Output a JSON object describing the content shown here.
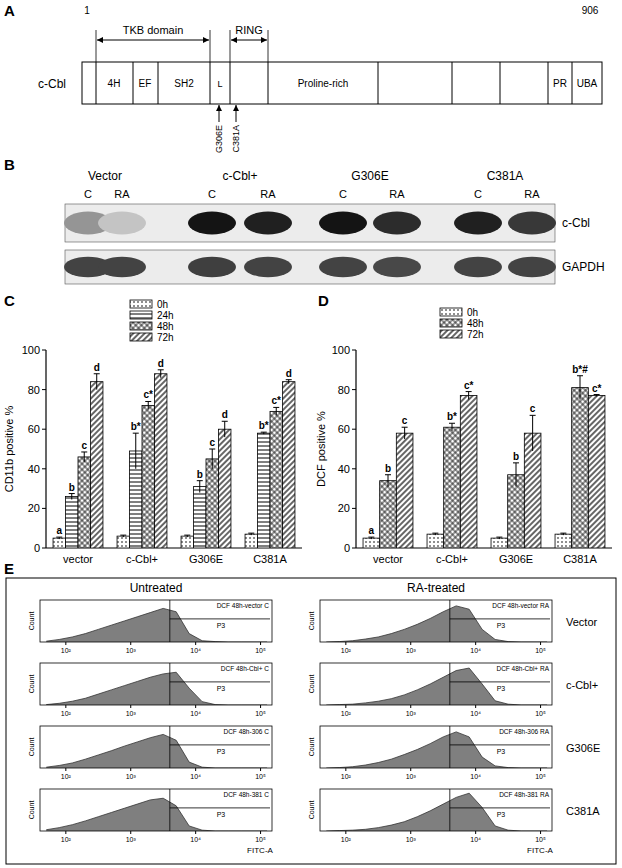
{
  "panel_labels": [
    "A",
    "B",
    "C",
    "D",
    "E"
  ],
  "diagram": {
    "protein": "c-Cbl",
    "start": 1,
    "end": 906,
    "regions": [
      {
        "label": "TKB domain"
      },
      {
        "label": "RING"
      }
    ],
    "domains": [
      "4H",
      "EF",
      "SH2",
      "L",
      "Proline-rich",
      "PR",
      "UBA"
    ],
    "mutations": [
      "G306E",
      "C381A"
    ]
  },
  "blot": {
    "groups": [
      "Vector",
      "c-Cbl+",
      "G306E",
      "C381A"
    ],
    "lanes": [
      "C",
      "RA",
      "C",
      "RA",
      "C",
      "RA",
      "C",
      "RA"
    ],
    "rows": [
      {
        "label": "c-Cbl",
        "intensity": [
          0.45,
          0.25,
          1,
          0.95,
          1,
          0.9,
          0.95,
          0.85
        ]
      },
      {
        "label": "GAPDH",
        "intensity": [
          0.8,
          0.8,
          0.82,
          0.8,
          0.8,
          0.78,
          0.8,
          0.8
        ]
      }
    ]
  },
  "flow": {
    "headers": [
      "Untreated",
      "RA-treated"
    ],
    "rows": [
      "Vector",
      "c-Cbl+",
      "G306E",
      "C381A"
    ]
  },
  "chart_data": [
    {
      "type": "bar",
      "ylabel": "CD11b positive %",
      "categories": [
        "vector",
        "c-Cbl+",
        "G306E",
        "C381A"
      ],
      "ylim": [
        0,
        100
      ],
      "yticks": [
        0,
        20,
        40,
        60,
        80,
        100
      ],
      "legend": "top",
      "series": [
        {
          "name": "0h",
          "color": "#000000",
          "marker": "dots",
          "values": [
            5,
            6,
            6,
            7
          ],
          "errors": [
            0.5,
            0.5,
            0.5,
            0.5
          ],
          "annotations": [
            "a",
            null,
            null,
            null
          ]
        },
        {
          "name": "24h",
          "color": "#000000",
          "marker": "horizontal",
          "values": [
            26,
            49,
            31,
            58
          ],
          "errors": [
            1.5,
            9,
            3,
            0.5
          ],
          "annotations": [
            "b",
            "b*",
            "b",
            "b*"
          ]
        },
        {
          "name": "48h",
          "color": "#000000",
          "marker": "crosshatch",
          "values": [
            46,
            72,
            45,
            69
          ],
          "errors": [
            2.5,
            2,
            5,
            2
          ],
          "annotations": [
            "c",
            "c*",
            "c",
            "c*"
          ]
        },
        {
          "name": "72h",
          "color": "#000000",
          "marker": "diagonal",
          "values": [
            84,
            88,
            60,
            84
          ],
          "errors": [
            4,
            2,
            4,
            1
          ],
          "annotations": [
            "d",
            "d",
            "d",
            "d"
          ]
        }
      ]
    },
    {
      "type": "bar",
      "ylabel": "DCF positive %",
      "categories": [
        "vector",
        "c-Cbl+",
        "G306E",
        "C381A"
      ],
      "ylim": [
        0,
        100
      ],
      "yticks": [
        0,
        20,
        40,
        60,
        80,
        100
      ],
      "legend": "top",
      "series": [
        {
          "name": "0h",
          "color": "#000000",
          "marker": "dots",
          "values": [
            5,
            7,
            5,
            7
          ],
          "errors": [
            0.5,
            0.5,
            0.5,
            0.5
          ],
          "annotations": [
            "a",
            null,
            null,
            null
          ]
        },
        {
          "name": "48h",
          "color": "#000000",
          "marker": "crosshatch",
          "values": [
            34,
            61,
            37,
            81
          ],
          "errors": [
            3,
            2,
            6,
            6
          ],
          "annotations": [
            "b",
            "b*",
            "b",
            "b*#"
          ]
        },
        {
          "name": "72h",
          "color": "#000000",
          "marker": "diagonal",
          "values": [
            58,
            77,
            58,
            77
          ],
          "errors": [
            3,
            2,
            9,
            0.5
          ],
          "annotations": [
            "c",
            "c*",
            "c",
            "c*"
          ]
        }
      ]
    },
    {
      "type": "area",
      "title": "DCF 48h-vector C",
      "ylabel": "Count",
      "log": "x",
      "tick_labels": "x",
      "color": "#7f7f7f",
      "xlim": [
        40,
        150000
      ],
      "ylim": [
        0,
        100
      ],
      "xticks": [
        {
          "value": 100,
          "label": "10²"
        },
        {
          "value": 1000,
          "label": "10³"
        },
        {
          "value": 10000,
          "label": "10⁴"
        },
        {
          "value": 100000,
          "label": "10⁵"
        }
      ],
      "annotations": [
        {
          "text": "P3",
          "x": 4000
        }
      ],
      "x": [
        50,
        79,
        126,
        200,
        316,
        501,
        794,
        1259,
        1995,
        3162,
        5012,
        7943,
        12589,
        19953,
        31623,
        50119,
        79433,
        125893
      ],
      "values": [
        2,
        6,
        12,
        20,
        30,
        40,
        50,
        60,
        70,
        80,
        72,
        20,
        3,
        1,
        0,
        0,
        0,
        0
      ]
    },
    {
      "type": "area",
      "title": "DCF 48h-vector RA",
      "ylabel": "Count",
      "log": "x",
      "tick_labels": "x",
      "color": "#7f7f7f",
      "xlim": [
        40,
        150000
      ],
      "ylim": [
        0,
        100
      ],
      "xticks": [
        {
          "value": 100,
          "label": "10²"
        },
        {
          "value": 1000,
          "label": "10³"
        },
        {
          "value": 10000,
          "label": "10⁴"
        },
        {
          "value": 100000,
          "label": "10⁵"
        }
      ],
      "annotations": [
        {
          "text": "P3",
          "x": 4000
        }
      ],
      "x": [
        50,
        79,
        126,
        200,
        316,
        501,
        794,
        1259,
        1995,
        3162,
        5012,
        7943,
        12589,
        19953,
        31623,
        50119,
        79433,
        125893
      ],
      "values": [
        0,
        1,
        3,
        7,
        12,
        20,
        30,
        42,
        56,
        72,
        86,
        78,
        30,
        6,
        1,
        0,
        0,
        0
      ]
    },
    {
      "type": "area",
      "title": "DCF 48h-Cbl+ C",
      "ylabel": "Count",
      "log": "x",
      "tick_labels": "x",
      "color": "#7f7f7f",
      "xlim": [
        40,
        150000
      ],
      "ylim": [
        0,
        100
      ],
      "xticks": [
        {
          "value": 100,
          "label": "10²"
        },
        {
          "value": 1000,
          "label": "10³"
        },
        {
          "value": 10000,
          "label": "10⁴"
        },
        {
          "value": 100000,
          "label": "10⁵"
        }
      ],
      "annotations": [
        {
          "text": "P3",
          "x": 4000
        }
      ],
      "x": [
        50,
        79,
        126,
        200,
        316,
        501,
        794,
        1259,
        1995,
        3162,
        5012,
        7943,
        12589,
        19953,
        31623,
        50119,
        79433,
        125893
      ],
      "values": [
        1,
        4,
        9,
        16,
        26,
        36,
        46,
        56,
        66,
        74,
        78,
        40,
        8,
        1,
        0,
        0,
        0,
        0
      ]
    },
    {
      "type": "area",
      "title": "DCF 48h-Cbl+ RA",
      "ylabel": "Count",
      "log": "x",
      "tick_labels": "x",
      "color": "#7f7f7f",
      "xlim": [
        40,
        150000
      ],
      "ylim": [
        0,
        100
      ],
      "xticks": [
        {
          "value": 100,
          "label": "10²"
        },
        {
          "value": 1000,
          "label": "10³"
        },
        {
          "value": 10000,
          "label": "10⁴"
        },
        {
          "value": 100000,
          "label": "10⁵"
        }
      ],
      "annotations": [
        {
          "text": "P3",
          "x": 4000
        }
      ],
      "x": [
        50,
        79,
        126,
        200,
        316,
        501,
        794,
        1259,
        1995,
        3162,
        5012,
        7943,
        12589,
        19953,
        31623,
        50119,
        79433,
        125893
      ],
      "values": [
        0,
        1,
        2,
        5,
        9,
        15,
        24,
        36,
        50,
        66,
        82,
        88,
        50,
        10,
        2,
        0,
        0,
        0
      ]
    },
    {
      "type": "area",
      "title": "DCF 48h-306 C",
      "ylabel": "Count",
      "log": "x",
      "tick_labels": "x",
      "color": "#7f7f7f",
      "xlim": [
        40,
        150000
      ],
      "ylim": [
        0,
        100
      ],
      "xticks": [
        {
          "value": 100,
          "label": "10²"
        },
        {
          "value": 1000,
          "label": "10³"
        },
        {
          "value": 10000,
          "label": "10⁴"
        },
        {
          "value": 100000,
          "label": "10⁵"
        }
      ],
      "annotations": [
        {
          "text": "P3",
          "x": 4000
        }
      ],
      "x": [
        50,
        79,
        126,
        200,
        316,
        501,
        794,
        1259,
        1995,
        3162,
        5012,
        7943,
        12589,
        19953,
        31623,
        50119,
        79433,
        125893
      ],
      "values": [
        2,
        6,
        12,
        21,
        31,
        41,
        52,
        62,
        72,
        80,
        66,
        14,
        2,
        0,
        0,
        0,
        0,
        0
      ]
    },
    {
      "type": "area",
      "title": "DCF 48h-306 RA",
      "ylabel": "Count",
      "log": "x",
      "tick_labels": "x",
      "color": "#7f7f7f",
      "xlim": [
        40,
        150000
      ],
      "ylim": [
        0,
        100
      ],
      "xticks": [
        {
          "value": 100,
          "label": "10²"
        },
        {
          "value": 1000,
          "label": "10³"
        },
        {
          "value": 10000,
          "label": "10⁴"
        },
        {
          "value": 100000,
          "label": "10⁵"
        }
      ],
      "annotations": [
        {
          "text": "P3",
          "x": 4000
        }
      ],
      "x": [
        50,
        79,
        126,
        200,
        316,
        501,
        794,
        1259,
        1995,
        3162,
        5012,
        7943,
        12589,
        19953,
        31623,
        50119,
        79433,
        125893
      ],
      "values": [
        0,
        1,
        3,
        7,
        13,
        21,
        32,
        44,
        58,
        74,
        86,
        74,
        26,
        5,
        1,
        0,
        0,
        0
      ]
    },
    {
      "type": "area",
      "title": "DCF 48h-381 C",
      "xlabel": "FITC-A",
      "ylabel": "Count",
      "log": "x",
      "tick_labels": "x",
      "color": "#7f7f7f",
      "xlim": [
        40,
        150000
      ],
      "ylim": [
        0,
        100
      ],
      "xticks": [
        {
          "value": 100,
          "label": "10²"
        },
        {
          "value": 1000,
          "label": "10³"
        },
        {
          "value": 10000,
          "label": "10⁴"
        },
        {
          "value": 100000,
          "label": "10⁵"
        }
      ],
      "annotations": [
        {
          "text": "P3",
          "x": 4000
        }
      ],
      "x": [
        50,
        79,
        126,
        200,
        316,
        501,
        794,
        1259,
        1995,
        3162,
        5012,
        7943,
        12589,
        19953,
        31623,
        50119,
        79433,
        125893
      ],
      "values": [
        3,
        8,
        15,
        24,
        34,
        44,
        54,
        64,
        74,
        78,
        60,
        12,
        2,
        0,
        0,
        0,
        0,
        0
      ]
    },
    {
      "type": "area",
      "title": "DCF 48h-381 RA",
      "xlabel": "FITC-A",
      "ylabel": "Count",
      "log": "x",
      "tick_labels": "x",
      "color": "#7f7f7f",
      "xlim": [
        40,
        150000
      ],
      "ylim": [
        0,
        100
      ],
      "xticks": [
        {
          "value": 100,
          "label": "10²"
        },
        {
          "value": 1000,
          "label": "10³"
        },
        {
          "value": 10000,
          "label": "10⁴"
        },
        {
          "value": 100000,
          "label": "10⁵"
        }
      ],
      "annotations": [
        {
          "text": "P3",
          "x": 4000
        }
      ],
      "x": [
        50,
        79,
        126,
        200,
        316,
        501,
        794,
        1259,
        1995,
        3162,
        5012,
        7943,
        12589,
        19953,
        31623,
        50119,
        79433,
        125893
      ],
      "values": [
        0,
        1,
        2,
        4,
        8,
        14,
        22,
        34,
        48,
        64,
        80,
        90,
        56,
        12,
        2,
        0,
        0,
        0
      ]
    }
  ]
}
